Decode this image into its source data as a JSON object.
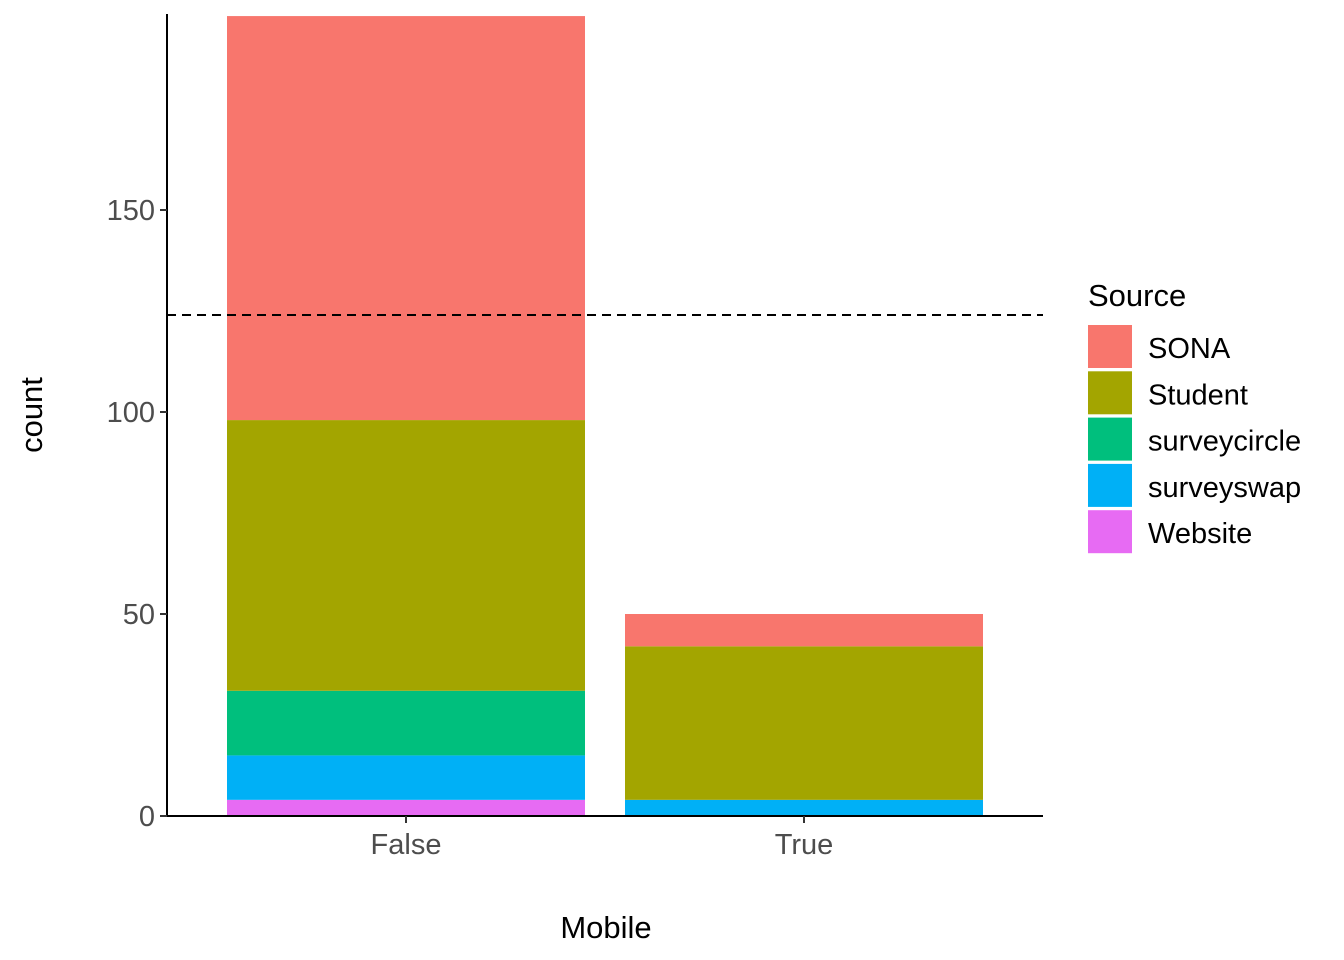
{
  "chart_data": {
    "type": "bar",
    "stacked": true,
    "xlabel": "Mobile",
    "ylabel": "count",
    "categories": [
      "False",
      "True"
    ],
    "ylim": [
      0,
      198
    ],
    "yticks": [
      0,
      50,
      100,
      150
    ],
    "grid": false,
    "legend": {
      "title": "Source",
      "position": "right"
    },
    "reference_line": {
      "y": 124,
      "style": "dashed",
      "color": "#000000"
    },
    "series": [
      {
        "name": "SONA",
        "color": "#F8766D",
        "values": [
          100,
          8
        ]
      },
      {
        "name": "Student",
        "color": "#A3A500",
        "values": [
          67,
          38
        ]
      },
      {
        "name": "surveycircle",
        "color": "#00BF7D",
        "values": [
          16,
          0
        ]
      },
      {
        "name": "surveyswap",
        "color": "#00B0F6",
        "values": [
          11,
          4
        ]
      },
      {
        "name": "Website",
        "color": "#E76BF3",
        "values": [
          4,
          0
        ]
      }
    ]
  }
}
